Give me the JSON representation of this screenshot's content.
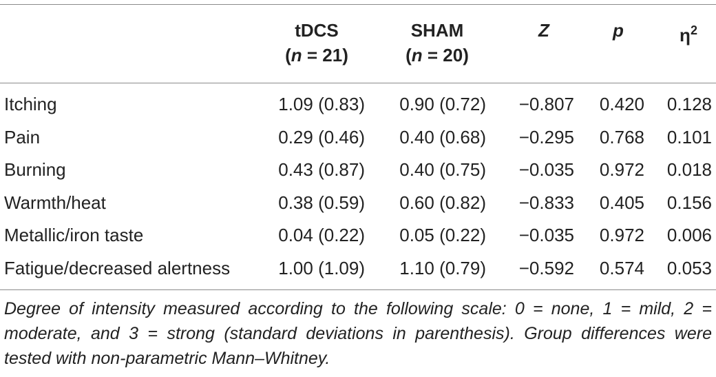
{
  "table": {
    "headers": {
      "tdcs_label": "tDCS",
      "tdcs_n": "(n = 21)",
      "sham_label": "SHAM",
      "sham_n": "(n = 20)",
      "z": "Z",
      "p": "p",
      "eta": "η",
      "eta_sup": "2"
    },
    "rows": [
      {
        "label": "Itching",
        "tdcs": "1.09 (0.83)",
        "sham": "0.90 (0.72)",
        "z": "−0.807",
        "p": "0.420",
        "eta": "0.128"
      },
      {
        "label": "Pain",
        "tdcs": "0.29 (0.46)",
        "sham": "0.40 (0.68)",
        "z": "−0.295",
        "p": "0.768",
        "eta": "0.101"
      },
      {
        "label": "Burning",
        "tdcs": "0.43 (0.87)",
        "sham": "0.40 (0.75)",
        "z": "−0.035",
        "p": "0.972",
        "eta": "0.018"
      },
      {
        "label": "Warmth/heat",
        "tdcs": "0.38 (0.59)",
        "sham": "0.60 (0.82)",
        "z": "−0.833",
        "p": "0.405",
        "eta": "0.156"
      },
      {
        "label": "Metallic/iron taste",
        "tdcs": "0.04 (0.22)",
        "sham": "0.05 (0.22)",
        "z": "−0.035",
        "p": "0.972",
        "eta": "0.006"
      },
      {
        "label": "Fatigue/decreased alertness",
        "tdcs": "1.00 (1.09)",
        "sham": "1.10 (0.79)",
        "z": "−0.592",
        "p": "0.574",
        "eta": "0.053"
      }
    ],
    "footnote": "Degree of intensity measured according to the following scale: 0 = none, 1 = mild, 2 = moderate, and 3 = strong (standard deviations in parenthesis). Group differences were tested with non-parametric Mann–Whitney."
  }
}
